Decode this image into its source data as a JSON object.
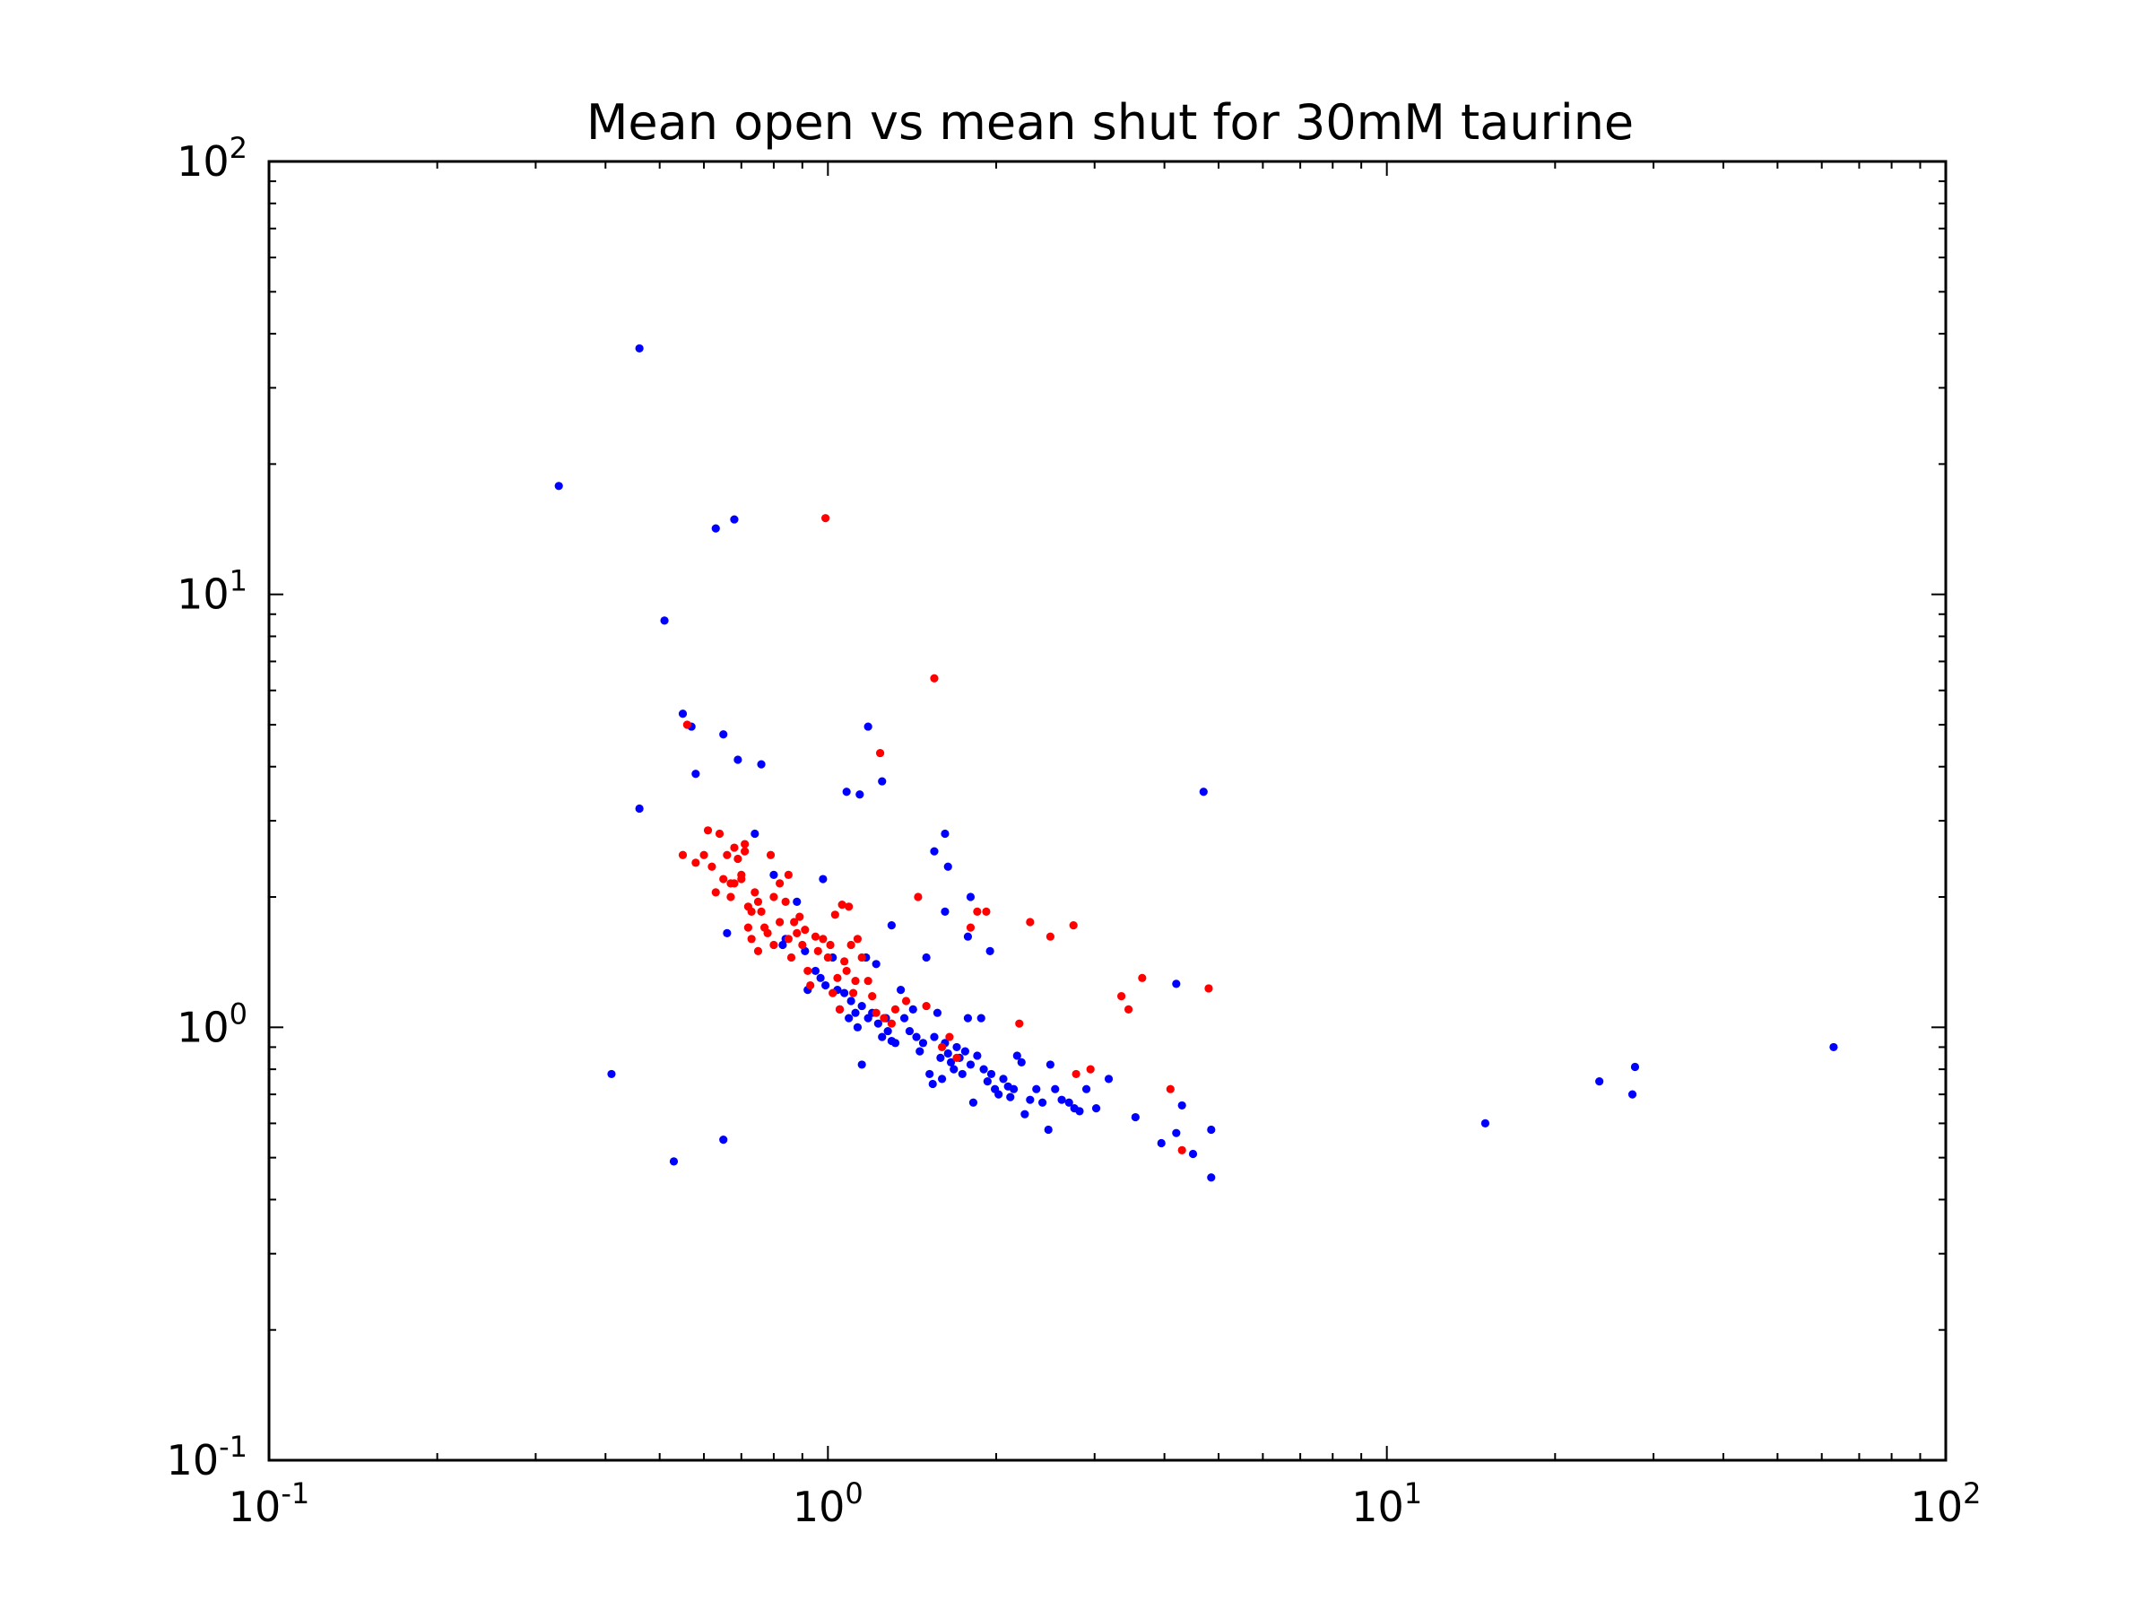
{
  "chart_data": {
    "type": "scatter",
    "title": "Mean open vs mean shut for 30mM taurine",
    "xlabel": "",
    "ylabel": "",
    "xscale": "log",
    "yscale": "log",
    "xlim": [
      0.1,
      100
    ],
    "ylim": [
      0.1,
      100
    ],
    "grid": false,
    "legend": "none",
    "x_ticks": [
      {
        "base": "10",
        "exp": "-1"
      },
      {
        "base": "10",
        "exp": "0"
      },
      {
        "base": "10",
        "exp": "1"
      },
      {
        "base": "10",
        "exp": "2"
      }
    ],
    "y_ticks": [
      {
        "base": "10",
        "exp": "-1"
      },
      {
        "base": "10",
        "exp": "0"
      },
      {
        "base": "10",
        "exp": "1"
      },
      {
        "base": "10",
        "exp": "2"
      }
    ],
    "series": [
      {
        "color": "#0000ff",
        "points": [
          [
            0.33,
            17.8
          ],
          [
            0.46,
            37
          ],
          [
            0.46,
            3.2
          ],
          [
            0.51,
            8.7
          ],
          [
            0.55,
            5.3
          ],
          [
            0.57,
            4.95
          ],
          [
            0.58,
            3.85
          ],
          [
            0.63,
            14.2
          ],
          [
            0.65,
            4.75
          ],
          [
            0.68,
            14.9
          ],
          [
            0.69,
            4.15
          ],
          [
            0.74,
            2.8
          ],
          [
            0.76,
            4.05
          ],
          [
            0.8,
            2.25
          ],
          [
            0.88,
            1.95
          ],
          [
            0.98,
            2.2
          ],
          [
            1.08,
            3.5
          ],
          [
            1.14,
            3.45
          ],
          [
            1.18,
            4.95
          ],
          [
            1.25,
            3.7
          ],
          [
            1.3,
            1.72
          ],
          [
            1.55,
            2.55
          ],
          [
            1.62,
            2.8
          ],
          [
            1.64,
            2.35
          ],
          [
            1.62,
            1.85
          ],
          [
            1.8,
            2.0
          ],
          [
            1.78,
            1.62
          ],
          [
            1.95,
            1.5
          ],
          [
            0.41,
            0.78
          ],
          [
            0.53,
            0.49
          ],
          [
            0.65,
            0.55
          ],
          [
            0.66,
            1.65
          ],
          [
            0.84,
            1.6
          ],
          [
            0.83,
            1.55
          ],
          [
            0.91,
            1.5
          ],
          [
            0.92,
            1.22
          ],
          [
            0.95,
            1.35
          ],
          [
            0.97,
            1.3
          ],
          [
            0.99,
            1.25
          ],
          [
            1.02,
            1.45
          ],
          [
            1.04,
            1.22
          ],
          [
            1.05,
            1.1
          ],
          [
            1.07,
            1.2
          ],
          [
            1.09,
            1.05
          ],
          [
            1.1,
            1.15
          ],
          [
            1.12,
            1.08
          ],
          [
            1.13,
            1.0
          ],
          [
            1.15,
            1.12
          ],
          [
            1.15,
            0.82
          ],
          [
            1.17,
            1.45
          ],
          [
            1.18,
            1.05
          ],
          [
            1.2,
            1.08
          ],
          [
            1.22,
            1.4
          ],
          [
            1.23,
            1.02
          ],
          [
            1.25,
            0.95
          ],
          [
            1.27,
            1.05
          ],
          [
            1.28,
            0.98
          ],
          [
            1.3,
            0.93
          ],
          [
            1.32,
            0.92
          ],
          [
            1.35,
            1.22
          ],
          [
            1.37,
            1.05
          ],
          [
            1.4,
            0.98
          ],
          [
            1.42,
            1.1
          ],
          [
            1.44,
            0.95
          ],
          [
            1.46,
            0.88
          ],
          [
            1.48,
            0.92
          ],
          [
            1.5,
            1.45
          ],
          [
            1.52,
            0.78
          ],
          [
            1.54,
            0.74
          ],
          [
            1.55,
            0.95
          ],
          [
            1.57,
            1.08
          ],
          [
            1.59,
            0.85
          ],
          [
            1.6,
            0.76
          ],
          [
            1.62,
            0.92
          ],
          [
            1.64,
            0.87
          ],
          [
            1.66,
            0.83
          ],
          [
            1.68,
            0.8
          ],
          [
            1.7,
            0.9
          ],
          [
            1.72,
            0.85
          ],
          [
            1.74,
            0.78
          ],
          [
            1.76,
            0.88
          ],
          [
            1.78,
            1.05
          ],
          [
            1.8,
            0.82
          ],
          [
            1.82,
            0.67
          ],
          [
            1.85,
            0.86
          ],
          [
            1.88,
            1.05
          ],
          [
            1.9,
            0.8
          ],
          [
            1.93,
            0.75
          ],
          [
            1.96,
            0.78
          ],
          [
            1.99,
            0.72
          ],
          [
            2.02,
            0.7
          ],
          [
            2.06,
            0.76
          ],
          [
            2.1,
            0.73
          ],
          [
            2.12,
            0.69
          ],
          [
            2.15,
            0.72
          ],
          [
            2.18,
            0.86
          ],
          [
            2.22,
            0.83
          ],
          [
            2.25,
            0.63
          ],
          [
            2.3,
            0.68
          ],
          [
            2.36,
            0.72
          ],
          [
            2.42,
            0.67
          ],
          [
            2.48,
            0.58
          ],
          [
            2.5,
            0.82
          ],
          [
            2.55,
            0.72
          ],
          [
            2.62,
            0.68
          ],
          [
            2.7,
            0.67
          ],
          [
            2.76,
            0.65
          ],
          [
            2.82,
            0.64
          ],
          [
            2.9,
            0.72
          ],
          [
            3.02,
            0.65
          ],
          [
            3.18,
            0.76
          ],
          [
            3.55,
            0.62
          ],
          [
            3.95,
            0.54
          ],
          [
            4.2,
            1.26
          ],
          [
            4.2,
            0.57
          ],
          [
            4.3,
            0.66
          ],
          [
            4.5,
            0.51
          ],
          [
            4.7,
            3.5
          ],
          [
            4.85,
            0.58
          ],
          [
            4.85,
            0.45
          ],
          [
            15.0,
            0.6
          ],
          [
            24.0,
            0.75
          ],
          [
            27.5,
            0.7
          ],
          [
            27.8,
            0.81
          ],
          [
            63.0,
            0.9
          ]
        ]
      },
      {
        "color": "#ff0000",
        "points": [
          [
            0.55,
            2.5
          ],
          [
            0.56,
            5.0
          ],
          [
            0.58,
            2.4
          ],
          [
            0.6,
            2.5
          ],
          [
            0.61,
            2.85
          ],
          [
            0.62,
            2.35
          ],
          [
            0.63,
            2.05
          ],
          [
            0.64,
            2.8
          ],
          [
            0.65,
            2.2
          ],
          [
            0.66,
            2.5
          ],
          [
            0.67,
            2.15
          ],
          [
            0.67,
            2.0
          ],
          [
            0.68,
            2.6
          ],
          [
            0.68,
            2.15
          ],
          [
            0.69,
            2.45
          ],
          [
            0.7,
            2.25
          ],
          [
            0.7,
            2.2
          ],
          [
            0.71,
            2.65
          ],
          [
            0.71,
            2.55
          ],
          [
            0.72,
            1.9
          ],
          [
            0.72,
            1.7
          ],
          [
            0.73,
            1.85
          ],
          [
            0.73,
            1.6
          ],
          [
            0.74,
            2.05
          ],
          [
            0.75,
            1.95
          ],
          [
            0.75,
            1.5
          ],
          [
            0.76,
            1.85
          ],
          [
            0.77,
            1.7
          ],
          [
            0.78,
            1.65
          ],
          [
            0.79,
            2.5
          ],
          [
            0.8,
            2.0
          ],
          [
            0.8,
            1.55
          ],
          [
            0.82,
            2.15
          ],
          [
            0.82,
            1.75
          ],
          [
            0.84,
            1.95
          ],
          [
            0.85,
            2.25
          ],
          [
            0.85,
            1.6
          ],
          [
            0.86,
            1.45
          ],
          [
            0.87,
            1.75
          ],
          [
            0.88,
            1.65
          ],
          [
            0.89,
            1.8
          ],
          [
            0.9,
            1.55
          ],
          [
            0.91,
            1.68
          ],
          [
            0.92,
            1.35
          ],
          [
            0.93,
            1.25
          ],
          [
            0.95,
            1.62
          ],
          [
            0.96,
            1.5
          ],
          [
            0.98,
            1.6
          ],
          [
            0.99,
            15.0
          ],
          [
            1.0,
            1.45
          ],
          [
            1.01,
            1.55
          ],
          [
            1.02,
            1.2
          ],
          [
            1.03,
            1.82
          ],
          [
            1.04,
            1.3
          ],
          [
            1.05,
            1.1
          ],
          [
            1.06,
            1.92
          ],
          [
            1.07,
            1.42
          ],
          [
            1.08,
            1.35
          ],
          [
            1.09,
            1.9
          ],
          [
            1.1,
            1.55
          ],
          [
            1.11,
            1.2
          ],
          [
            1.12,
            1.28
          ],
          [
            1.13,
            1.6
          ],
          [
            1.15,
            1.45
          ],
          [
            1.18,
            1.28
          ],
          [
            1.2,
            1.18
          ],
          [
            1.22,
            1.08
          ],
          [
            1.24,
            4.3
          ],
          [
            1.26,
            1.05
          ],
          [
            1.3,
            1.02
          ],
          [
            1.32,
            1.1
          ],
          [
            1.38,
            1.15
          ],
          [
            1.45,
            2.0
          ],
          [
            1.5,
            1.12
          ],
          [
            1.55,
            6.4
          ],
          [
            1.6,
            0.9
          ],
          [
            1.65,
            0.95
          ],
          [
            1.7,
            0.85
          ],
          [
            1.8,
            1.7
          ],
          [
            1.85,
            1.85
          ],
          [
            1.92,
            1.85
          ],
          [
            2.2,
            1.02
          ],
          [
            2.3,
            1.75
          ],
          [
            2.5,
            1.62
          ],
          [
            2.75,
            1.72
          ],
          [
            2.78,
            0.78
          ],
          [
            2.95,
            0.8
          ],
          [
            3.35,
            1.18
          ],
          [
            3.45,
            1.1
          ],
          [
            3.65,
            1.3
          ],
          [
            4.1,
            0.72
          ],
          [
            4.3,
            0.52
          ],
          [
            4.8,
            1.23
          ]
        ]
      }
    ]
  }
}
